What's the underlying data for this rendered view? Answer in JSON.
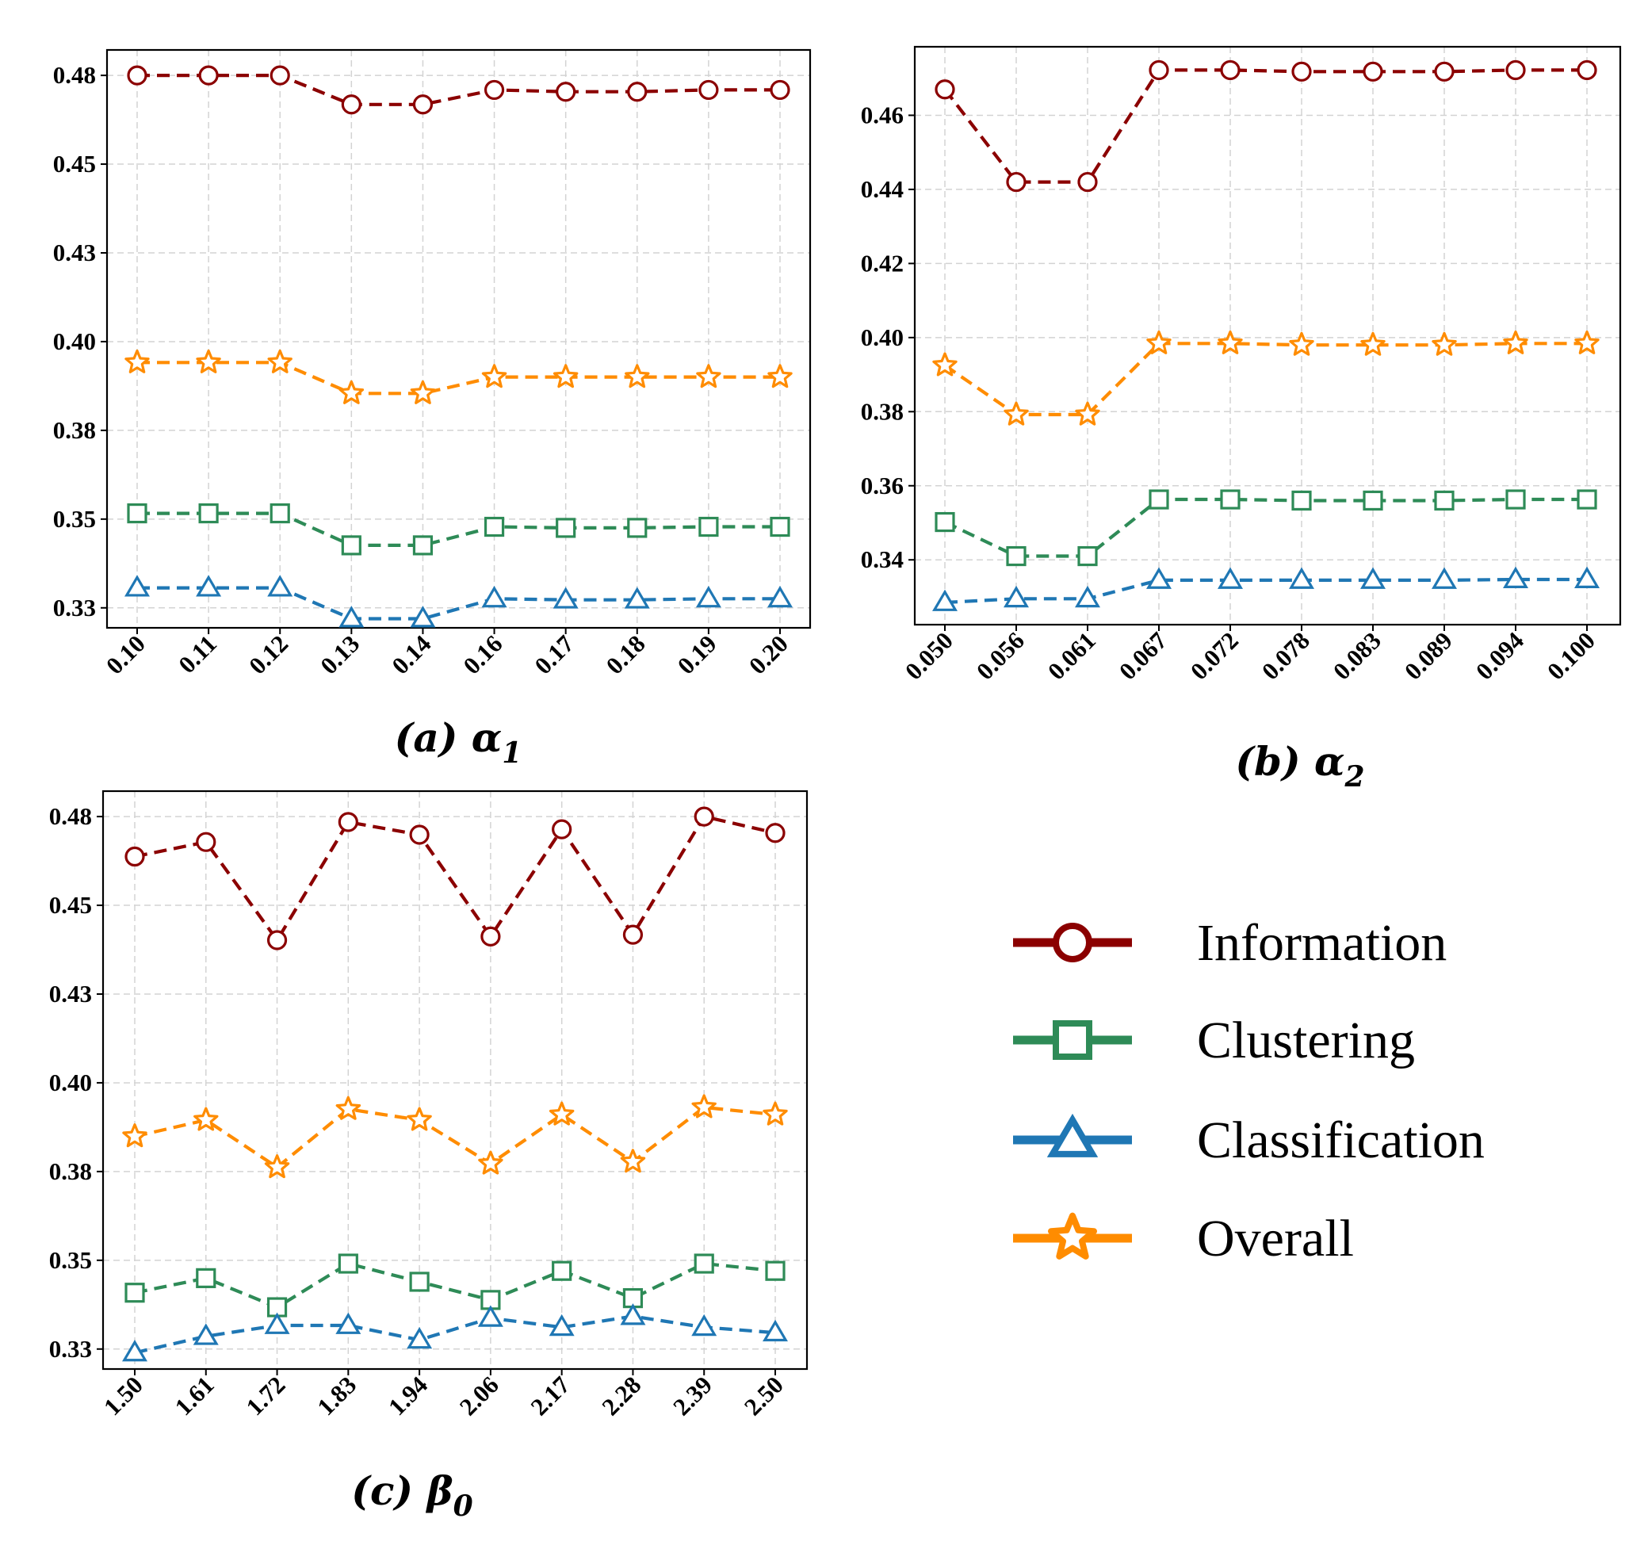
{
  "chart_data": [
    {
      "type": "line",
      "caption": "(a) α1",
      "categories": [
        "0.10",
        "0.11",
        "0.12",
        "0.13",
        "0.14",
        "0.16",
        "0.17",
        "0.18",
        "0.19",
        "0.20"
      ],
      "yticks": [
        "0.48",
        "0.45",
        "0.43",
        "0.40",
        "0.38",
        "0.35",
        "0.33"
      ],
      "ylim": [
        0.327,
        0.486
      ],
      "series": [
        {
          "name": "Information",
          "values": [
            0.479,
            0.479,
            0.479,
            0.471,
            0.471,
            0.475,
            0.4745,
            0.4745,
            0.475,
            0.475
          ]
        },
        {
          "name": "Overall",
          "values": [
            0.4,
            0.4,
            0.4,
            0.3915,
            0.3915,
            0.396,
            0.396,
            0.396,
            0.396,
            0.396
          ]
        },
        {
          "name": "Clustering",
          "values": [
            0.3585,
            0.3585,
            0.3585,
            0.3497,
            0.3497,
            0.3548,
            0.3545,
            0.3545,
            0.3548,
            0.3548
          ]
        },
        {
          "name": "Classification",
          "values": [
            0.338,
            0.338,
            0.338,
            0.3295,
            0.3295,
            0.335,
            0.3347,
            0.3347,
            0.335,
            0.335
          ]
        }
      ]
    },
    {
      "type": "line",
      "caption": "(b) α2",
      "categories": [
        "0.050",
        "0.056",
        "0.061",
        "0.067",
        "0.072",
        "0.078",
        "0.083",
        "0.089",
        "0.094",
        "0.100"
      ],
      "yticks": [
        "0.46",
        "0.44",
        "0.42",
        "0.40",
        "0.38",
        "0.36",
        "0.34"
      ],
      "ylim": [
        0.3225,
        0.4785
      ],
      "series": [
        {
          "name": "Information",
          "values": [
            0.467,
            0.442,
            0.442,
            0.4722,
            0.4722,
            0.4718,
            0.4718,
            0.4718,
            0.4722,
            0.4722
          ]
        },
        {
          "name": "Overall",
          "values": [
            0.3925,
            0.3792,
            0.3792,
            0.3984,
            0.3984,
            0.398,
            0.398,
            0.398,
            0.3984,
            0.3984
          ]
        },
        {
          "name": "Clustering",
          "values": [
            0.3502,
            0.341,
            0.341,
            0.3563,
            0.3563,
            0.356,
            0.356,
            0.356,
            0.3563,
            0.3563
          ]
        },
        {
          "name": "Classification",
          "values": [
            0.3285,
            0.3295,
            0.3295,
            0.3345,
            0.3345,
            0.3345,
            0.3345,
            0.3345,
            0.3347,
            0.3347
          ]
        }
      ]
    },
    {
      "type": "line",
      "caption": "(c) β0",
      "categories": [
        "1.50",
        "1.61",
        "1.72",
        "1.83",
        "1.94",
        "2.06",
        "2.17",
        "2.28",
        "2.39",
        "2.50"
      ],
      "yticks": [
        "0.48",
        "0.45",
        "0.43",
        "0.40",
        "0.38",
        "0.35",
        "0.33"
      ],
      "ylim": [
        0.327,
        0.486
      ],
      "series": [
        {
          "name": "Information",
          "values": [
            0.468,
            0.472,
            0.445,
            0.4775,
            0.474,
            0.446,
            0.4755,
            0.4465,
            0.479,
            0.4745
          ]
        },
        {
          "name": "Overall",
          "values": [
            0.391,
            0.3955,
            0.3825,
            0.3985,
            0.3955,
            0.3835,
            0.397,
            0.384,
            0.399,
            0.397
          ]
        },
        {
          "name": "Clustering",
          "values": [
            0.348,
            0.352,
            0.344,
            0.356,
            0.351,
            0.346,
            0.354,
            0.3465,
            0.356,
            0.354
          ]
        },
        {
          "name": "Classification",
          "values": [
            0.3315,
            0.336,
            0.339,
            0.339,
            0.335,
            0.341,
            0.3385,
            0.3415,
            0.3385,
            0.337
          ]
        }
      ]
    }
  ],
  "legend": [
    {
      "label": "Information",
      "marker": "circle",
      "color": "#8b0000"
    },
    {
      "label": "Clustering",
      "marker": "square",
      "color": "#2e8b57"
    },
    {
      "label": "Classification",
      "marker": "triangle",
      "color": "#1f77b4"
    },
    {
      "label": "Overall",
      "marker": "star",
      "color": "#ff8c00"
    }
  ],
  "colors": {
    "Information": "#8b0000",
    "Clustering": "#2e8b57",
    "Classification": "#1f77b4",
    "Overall": "#ff8c00"
  }
}
